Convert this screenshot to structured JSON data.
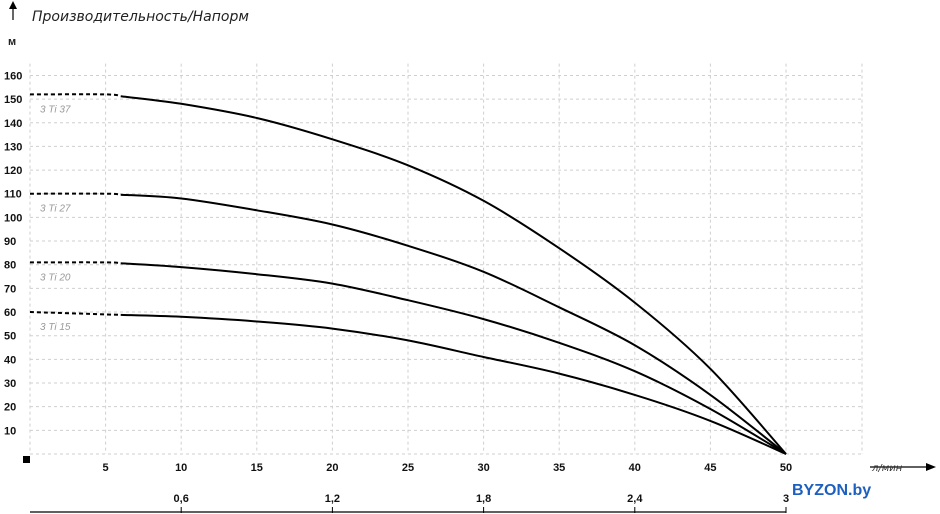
{
  "chart_data": {
    "type": "line",
    "title": "Производительность/Напорм",
    "ylabel": "м",
    "xlabel": "л/мин",
    "xlim": [
      0,
      52
    ],
    "ylim": [
      0,
      165
    ],
    "x_ticks": [
      5,
      10,
      15,
      20,
      25,
      30,
      35,
      40,
      45,
      50
    ],
    "y_ticks": [
      10,
      20,
      30,
      40,
      50,
      60,
      70,
      80,
      90,
      100,
      110,
      120,
      130,
      140,
      150,
      160
    ],
    "secondary_x_ticks": [
      {
        "x": 10,
        "label": "0,6"
      },
      {
        "x": 20,
        "label": "1,2"
      },
      {
        "x": 30,
        "label": "1,8"
      },
      {
        "x": 40,
        "label": "2,4"
      },
      {
        "x": 50,
        "label": "3"
      }
    ],
    "grid": true,
    "series": [
      {
        "name": "3 Ti 37",
        "x": [
          0,
          5,
          10,
          15,
          20,
          25,
          30,
          35,
          40,
          45,
          50
        ],
        "y": [
          152,
          152,
          148,
          142,
          133,
          122,
          107,
          87,
          64,
          36,
          0
        ],
        "dashed_until": 6
      },
      {
        "name": "3 Ti 27",
        "x": [
          0,
          5,
          10,
          15,
          20,
          25,
          30,
          35,
          40,
          45,
          50
        ],
        "y": [
          110,
          110,
          108,
          103,
          97,
          88,
          77,
          62,
          46,
          25,
          0
        ],
        "dashed_until": 6
      },
      {
        "name": "3 Ti 20",
        "x": [
          0,
          5,
          10,
          15,
          20,
          25,
          30,
          35,
          40,
          45,
          50
        ],
        "y": [
          81,
          81,
          79,
          76,
          72,
          65,
          57,
          47,
          35,
          19,
          0
        ],
        "dashed_until": 6
      },
      {
        "name": "3 Ti 15",
        "x": [
          0,
          5,
          10,
          15,
          20,
          25,
          30,
          35,
          40,
          45,
          50
        ],
        "y": [
          60,
          59,
          58,
          56,
          53,
          48,
          41,
          34,
          25,
          14,
          0
        ],
        "dashed_until": 6
      }
    ]
  },
  "watermark": "BYZON.by"
}
